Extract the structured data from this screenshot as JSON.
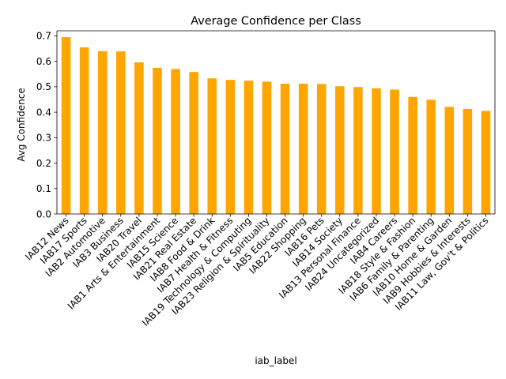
{
  "chart_data": {
    "type": "bar",
    "title": "Average Confidence per Class",
    "xlabel": "iab_label",
    "ylabel": "Avg Confidence",
    "ylim": [
      0,
      0.72
    ],
    "yticks": [
      0.0,
      0.1,
      0.2,
      0.3,
      0.4,
      0.5,
      0.6,
      0.7
    ],
    "ytick_labels": [
      "0.0",
      "0.1",
      "0.2",
      "0.3",
      "0.4",
      "0.5",
      "0.6",
      "0.7"
    ],
    "grid": false,
    "bar_color": "#ffa500",
    "categories": [
      "IAB12 News",
      "IAB17 Sports",
      "IAB2 Automotive",
      "IAB3 Business",
      "IAB20 Travel",
      "IAB1 Arts & Entertainment",
      "IAB15 Science",
      "IAB21 Real Estate",
      "IAB8 Food & Drink",
      "IAB7 Health & Fitness",
      "IAB19 Technology & Computing",
      "IAB23 Religion & Spirituality",
      "IAB5 Education",
      "IAB22 Shopping",
      "IAB16 Pets",
      "IAB14 Society",
      "IAB13 Personal Finance",
      "IAB24 Uncategorized",
      "IAB4 Careers",
      "IAB18 Style & Fashion",
      "IAB6 Family & Parenting",
      "IAB10 Home & Garden",
      "IAB9 Hobbies & Interests",
      "IAB11 Law, Gov't & Politics"
    ],
    "values": [
      0.695,
      0.655,
      0.64,
      0.639,
      0.596,
      0.574,
      0.57,
      0.558,
      0.533,
      0.527,
      0.524,
      0.52,
      0.512,
      0.512,
      0.511,
      0.502,
      0.499,
      0.494,
      0.489,
      0.46,
      0.449,
      0.421,
      0.413,
      0.405
    ]
  }
}
